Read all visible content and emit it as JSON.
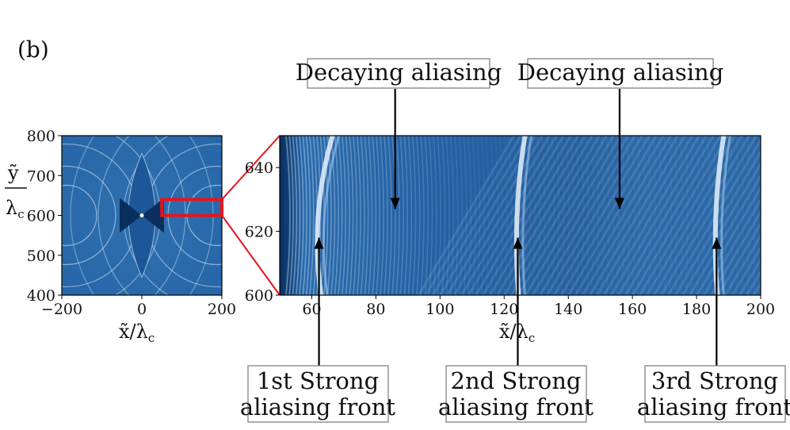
{
  "panel_label": "(b)",
  "annotations": {
    "decaying_1": "Decaying aliasing",
    "decaying_2": "Decaying aliasing",
    "front_1": [
      "1st Strong",
      "aliasing front"
    ],
    "front_2": [
      "2nd Strong",
      "aliasing front"
    ],
    "front_3": [
      "3rd Strong",
      "aliasing front"
    ]
  },
  "colors": {
    "map_dark": "#0a2f5e",
    "map_mid": "#2462a6",
    "map_light": "#e6f1fb",
    "zoom_box": "#e8141b"
  },
  "chart_data": [
    {
      "type": "heatmap",
      "title": "",
      "xlabel": "x̃/λ_c",
      "ylabel": "ỹ/λ_c",
      "xlabel_parts": {
        "main": "x̃/λ",
        "sub": "c"
      },
      "ylabel_parts": {
        "num": "ỹ",
        "den": "λ",
        "sub": "c"
      },
      "xlim": [
        -200,
        200
      ],
      "ylim": [
        400,
        800
      ],
      "xticks": [
        -200,
        0,
        200
      ],
      "yticks": [
        400,
        500,
        600,
        700,
        800
      ],
      "xtick_labels": [
        "−200",
        "0",
        "200"
      ],
      "ytick_labels": [
        "400",
        "500",
        "600",
        "700",
        "800"
      ],
      "colormap": "Blues",
      "source_center": [
        0,
        600
      ],
      "zoom_box": {
        "x": [
          50,
          200
        ],
        "y": [
          600,
          640
        ]
      }
    },
    {
      "type": "heatmap",
      "title": "",
      "xlabel": "x̃/λ_c",
      "xlabel_parts": {
        "main": "x̃/λ",
        "sub": "c"
      },
      "xlim": [
        50,
        200
      ],
      "ylim": [
        600,
        650
      ],
      "xticks": [
        60,
        80,
        100,
        120,
        140,
        160,
        180,
        200
      ],
      "yticks": [
        600,
        620,
        640
      ],
      "xtick_labels": [
        "60",
        "80",
        "100",
        "120",
        "140",
        "160",
        "180",
        "200"
      ],
      "ytick_labels": [
        "600",
        "620",
        "640"
      ],
      "colormap": "Blues",
      "strong_fronts_x": [
        62,
        124,
        186
      ],
      "decaying_arrows": [
        {
          "x": 86,
          "y": 627
        },
        {
          "x": 156,
          "y": 627
        }
      ],
      "front_arrows_y": 618
    }
  ]
}
